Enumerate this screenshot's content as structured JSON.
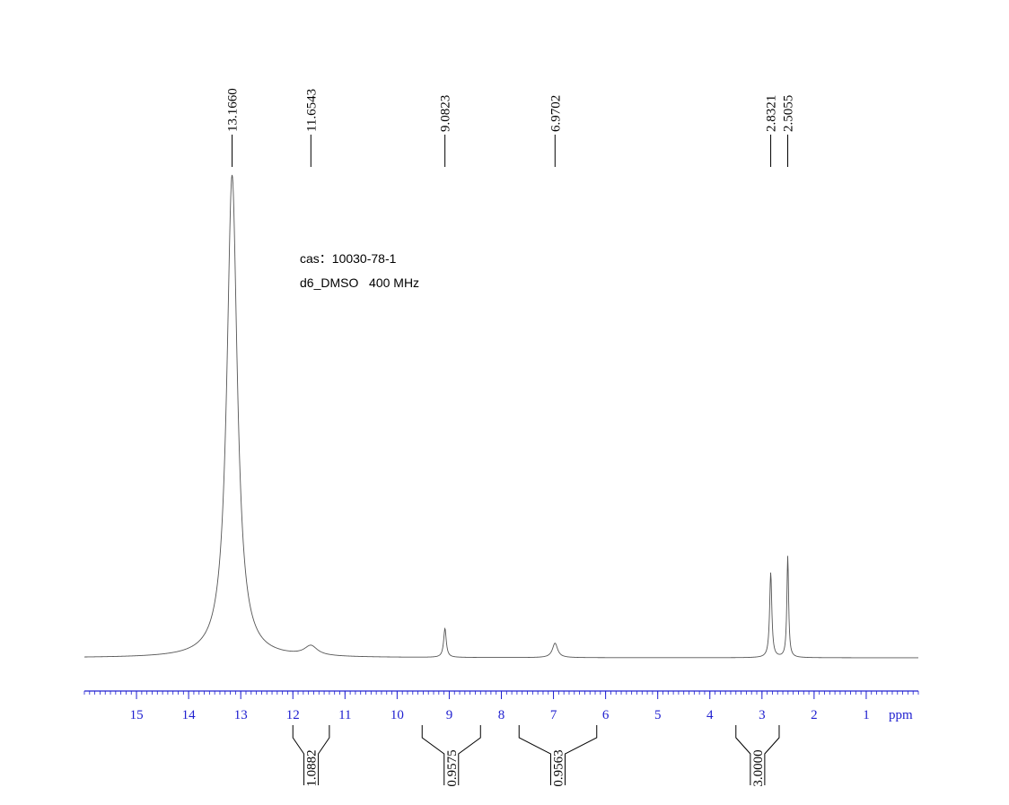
{
  "chart_data": {
    "type": "nmr",
    "annotations": [
      "cas：10030-78-1",
      "d6_DMSO   400 MHz"
    ],
    "xlabel": "ppm",
    "xlim": [
      16,
      0
    ],
    "xticks": [
      15,
      14,
      13,
      12,
      11,
      10,
      9,
      8,
      7,
      6,
      5,
      4,
      3,
      2,
      1
    ],
    "xminor": 0.1,
    "ylim": [
      0,
      100
    ],
    "color": "#555555",
    "axis_color": "#2020d0",
    "peaks": [
      {
        "shift": 13.166,
        "shift_label": "13.1660",
        "height": 100,
        "width": 0.12
      },
      {
        "shift": 11.6543,
        "height": 2,
        "width": 0.15
      },
      {
        "shift": 9.0823,
        "height": 6,
        "width": 0.03
      },
      {
        "shift": 6.9702,
        "height": 3,
        "width": 0.06
      },
      {
        "shift": 2.8321,
        "height": 17.6,
        "width": 0.025
      },
      {
        "shift": 2.5055,
        "height": 21,
        "width": 0.02
      }
    ],
    "integrals": [
      {
        "range": [
          12,
          11.3
        ],
        "value": 1.0882
      },
      {
        "range": [
          9.52,
          8.4
        ],
        "value": 0.9575
      },
      {
        "range": [
          7.66,
          6.17
        ],
        "value": 0.9563
      },
      {
        "range": [
          3.5,
          2.67
        ],
        "value": 3,
        "value_label": "3.0000"
      }
    ]
  }
}
